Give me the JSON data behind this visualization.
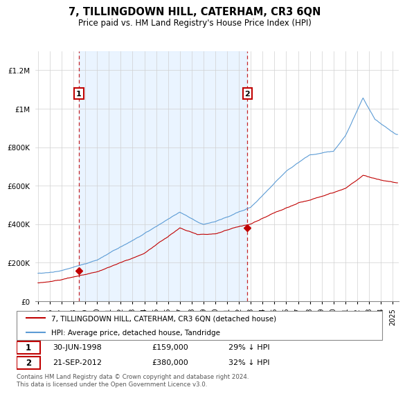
{
  "title": "7, TILLINGDOWN HILL, CATERHAM, CR3 6QN",
  "subtitle": "Price paid vs. HM Land Registry's House Price Index (HPI)",
  "legend_line1": "7, TILLINGDOWN HILL, CATERHAM, CR3 6QN (detached house)",
  "legend_line2": "HPI: Average price, detached house, Tandridge",
  "annotation1_date": "30-JUN-1998",
  "annotation1_price": 159000,
  "annotation1_text": "29% ↓ HPI",
  "annotation2_date": "21-SEP-2012",
  "annotation2_price": 380000,
  "annotation2_text": "32% ↓ HPI",
  "footer": "Contains HM Land Registry data © Crown copyright and database right 2024.\nThis data is licensed under the Open Government Licence v3.0.",
  "hpi_color": "#5b9bd5",
  "price_color": "#c00000",
  "vline_color": "#c00000",
  "shade_color": "#ddeeff",
  "background_color": "#ffffff",
  "grid_color": "#d0d0d0",
  "ylim": [
    0,
    1300000
  ],
  "yticks": [
    0,
    200000,
    400000,
    600000,
    800000,
    1000000,
    1200000
  ],
  "ytick_labels": [
    "£0",
    "£200K",
    "£400K",
    "£600K",
    "£800K",
    "£1M",
    "£1.2M"
  ],
  "sale1_year": 1998.458,
  "sale1_price": 159000,
  "sale2_year": 2012.708,
  "sale2_price": 380000
}
